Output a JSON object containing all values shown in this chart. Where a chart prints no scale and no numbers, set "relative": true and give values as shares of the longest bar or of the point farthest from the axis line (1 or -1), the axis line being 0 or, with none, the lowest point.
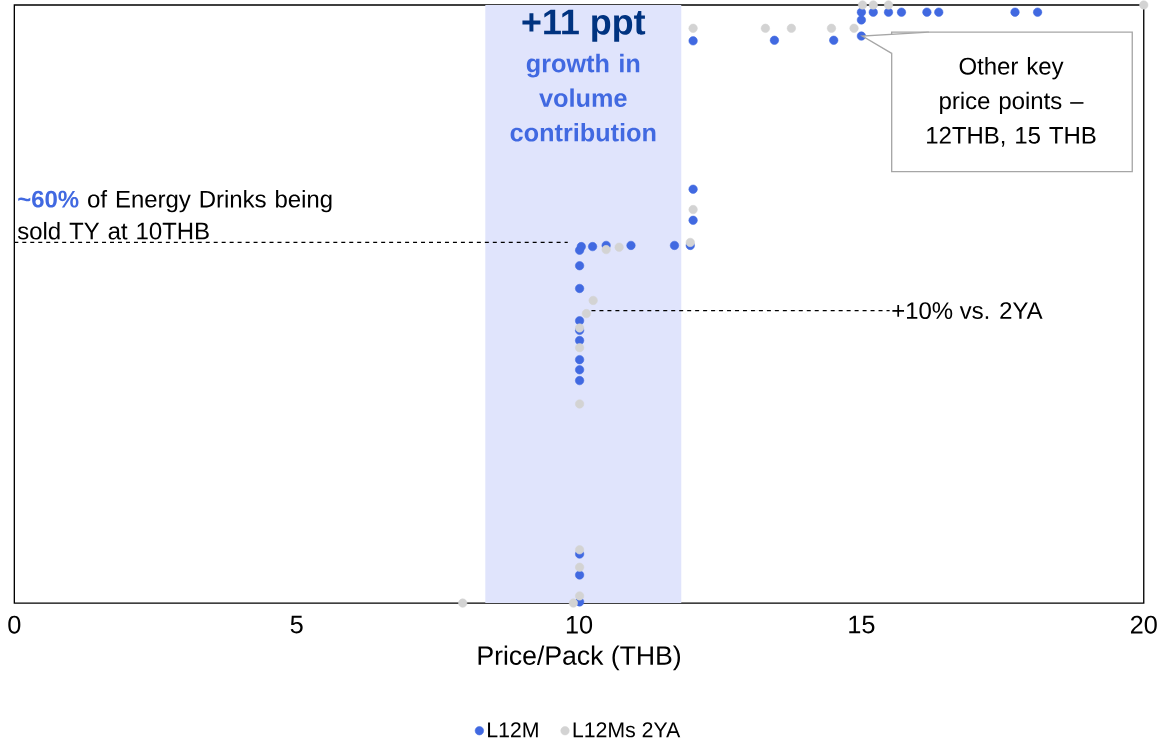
{
  "chart_data": {
    "type": "scatter",
    "relative": true,
    "xlabel": "Price/Pack (THB)",
    "xlim": [
      0,
      20
    ],
    "xticks": [
      0,
      5,
      10,
      15,
      20
    ],
    "grid": false,
    "legend": "bottom",
    "marker": "circle",
    "series": [
      {
        "name": "L12M",
        "color": "#4169e1",
        "x": [
          10.01,
          10.01,
          10.01,
          10.01,
          10.01,
          10.01,
          10.01,
          10.01,
          10.01,
          10.01,
          10.01,
          10.01,
          10.04,
          10.24,
          10.48,
          10.92,
          11.69,
          11.97,
          12.02,
          12.02,
          12.02,
          13.46,
          14.51,
          15.0,
          15.0,
          15.0,
          15.21,
          15.48,
          15.71,
          16.16,
          16.37,
          17.72,
          18.12
        ],
        "values": [
          0.002,
          0.047,
          0.082,
          0.372,
          0.39,
          0.407,
          0.439,
          0.456,
          0.472,
          0.526,
          0.564,
          0.59,
          0.596,
          0.596,
          0.598,
          0.598,
          0.598,
          0.598,
          0.64,
          0.692,
          0.94,
          0.941,
          0.941,
          0.948,
          0.975,
          0.988,
          0.988,
          0.988,
          0.988,
          0.988,
          0.988,
          0.988,
          0.988
        ]
      },
      {
        "name": "L12Ms 2YA",
        "color": "#d3d3d3",
        "x": [
          7.94,
          9.9,
          10.01,
          10.01,
          10.01,
          10.01,
          10.01,
          10.01,
          10.13,
          10.25,
          10.48,
          10.71,
          11.97,
          12.02,
          12.02,
          13.3,
          13.76,
          14.47,
          14.87,
          15.02,
          15.21,
          15.48,
          20.0
        ],
        "values": [
          0.0,
          0.0,
          0.012,
          0.06,
          0.089,
          0.333,
          0.427,
          0.46,
          0.484,
          0.506,
          0.591,
          0.595,
          0.603,
          0.658,
          0.961,
          0.961,
          0.961,
          0.961,
          0.961,
          1.0,
          1.0,
          1.0,
          1.0
        ]
      }
    ],
    "ref_lines": [
      {
        "axis": "y",
        "value": 0.603,
        "label": "**~60%** of Energy Drinks being sold TY at 10THB",
        "line_style": "dashed"
      }
    ],
    "bands": [
      {
        "axis": "x",
        "from": 8.34,
        "to": 11.81,
        "label": "+11 ppt",
        "color": "#e0e4fc"
      }
    ],
    "annotations": [
      "growth in volume contribution",
      {
        "text": "+10% vs. 2YA",
        "x": 10.22,
        "y": 0.489
      },
      {
        "text": "Other key price points – 12THB, 15 THB",
        "x": 15.0,
        "y": 0.948
      }
    ]
  }
}
